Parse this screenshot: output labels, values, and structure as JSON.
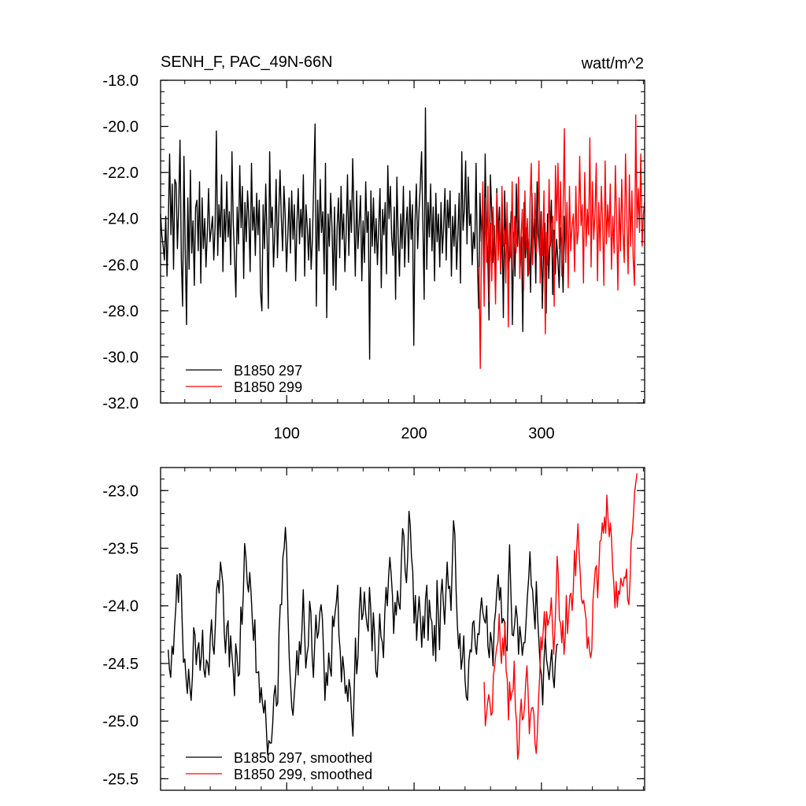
{
  "chart_data": [
    {
      "type": "line",
      "title": "SENH_F, PAC_49N-66N",
      "units": "watt/m^2",
      "xlim": [
        1,
        381
      ],
      "ylim": [
        -32,
        -18
      ],
      "y_ticks": [
        -32,
        -30,
        -28,
        -26,
        -24,
        -22,
        -20,
        -18
      ],
      "y_tick_labels": [
        "-32.0",
        "-30.0",
        "-28.0",
        "-26.0",
        "-24.0",
        "-22.0",
        "-20.0",
        "-18.0"
      ],
      "x_ticks": [
        100,
        200,
        300
      ],
      "x_tick_labels": [
        "100",
        "200",
        "300"
      ],
      "legend_position": "bottom-left",
      "series": [
        {
          "name": "B1850 297",
          "color": "#000000",
          "x_start": 1,
          "x_end": 319,
          "mean": -24.3,
          "sd": 1.7,
          "values": [
            -23.8,
            -24.7,
            -25.2,
            -25.8,
            -23.9,
            -26.5,
            -24.1,
            -21.2,
            -24.7,
            -22.5,
            -26.2,
            -22.3,
            -22.5,
            -25.3,
            -23.4,
            -20.6,
            -25.8,
            -27.8,
            -21.3,
            -25.3,
            -28.6,
            -23.1,
            -26.2,
            -21.9,
            -25.5,
            -24.1,
            -26.9,
            -23.5,
            -23.2,
            -25.4,
            -22.4,
            -26.8,
            -23.1,
            -25.3,
            -24.0,
            -26.1,
            -24.6,
            -22.7,
            -25.0,
            -24.5,
            -23.9,
            -25.8,
            -24.3,
            -20.2,
            -25.6,
            -23.4,
            -24.8,
            -22.1,
            -26.3,
            -23.6,
            -25.0,
            -22.4,
            -24.8,
            -23.7,
            -26.0,
            -21.1,
            -24.2,
            -25.7,
            -27.4,
            -23.5,
            -25.1,
            -21.7,
            -24.4,
            -22.6,
            -26.6,
            -23.3,
            -25.0,
            -22.8,
            -24.0,
            -26.3,
            -21.6,
            -24.5,
            -23.5,
            -25.6,
            -22.9,
            -24.7,
            -23.2,
            -27.2,
            -28.0,
            -23.4,
            -25.3,
            -22.5,
            -24.8,
            -27.9,
            -21.1,
            -24.4,
            -23.5,
            -26.1,
            -24.6,
            -22.3,
            -25.7,
            -23.8,
            -21.9,
            -24.0,
            -25.4,
            -22.6,
            -23.9,
            -26.3,
            -24.7,
            -23.1,
            -25.5,
            -22.8,
            -24.9,
            -23.4,
            -26.7,
            -24.2,
            -22.7,
            -25.1,
            -23.6,
            -24.8,
            -22.1,
            -26.5,
            -23.4,
            -24.4,
            -25.8,
            -24.0,
            -26.2,
            -24.8,
            -22.4,
            -19.9,
            -27.8,
            -23.2,
            -25.4,
            -22.3,
            -24.6,
            -23.7,
            -26.4,
            -21.6,
            -28.3,
            -23.8,
            -25.2,
            -22.9,
            -24.3,
            -26.9,
            -23.5,
            -27.1,
            -24.4,
            -23.1,
            -25.7,
            -22.6,
            -24.9,
            -23.8,
            -26.3,
            -24.5,
            -22.1,
            -25.6,
            -23.2,
            -24.6,
            -21.4,
            -23.9,
            -26.5,
            -22.8,
            -25.3,
            -24.2,
            -23.0,
            -26.7,
            -24.1,
            -25.9,
            -22.4,
            -24.6,
            -23.7,
            -30.1,
            -22.8,
            -25.2,
            -23.1,
            -25.5,
            -24.0,
            -26.0,
            -24.4,
            -22.7,
            -27.0,
            -23.6,
            -24.7,
            -23.3,
            -26.4,
            -21.7,
            -24.0,
            -22.6,
            -24.8,
            -25.6,
            -23.5,
            -27.5,
            -22.2,
            -24.8,
            -26.5,
            -23.8,
            -25.3,
            -22.6,
            -26.1,
            -24.3,
            -23.5,
            -25.9,
            -22.8,
            -24.9,
            -23.4,
            -29.5,
            -24.1,
            -22.5,
            -25.3,
            -23.7,
            -22.6,
            -21.1,
            -24.2,
            -27.5,
            -19.2,
            -26.2,
            -23.3,
            -24.8,
            -22.5,
            -25.4,
            -23.5,
            -26.7,
            -22.9,
            -25.0,
            -23.8,
            -26.1,
            -23.3,
            -25.5,
            -24.4,
            -22.7,
            -25.8,
            -23.2,
            -24.4,
            -22.8,
            -26.5,
            -23.9,
            -25.2,
            -23.4,
            -26.2,
            -24.7,
            -22.9,
            -26.8,
            -21.1,
            -24.5,
            -23.6,
            -21.5,
            -25.1,
            -22.2,
            -24.3,
            -23.8,
            -26.0,
            -24.6,
            -25.3,
            -21.6,
            -25.7,
            -27.9,
            -22.9,
            -25.0,
            -23.4,
            -26.8,
            -21.2,
            -24.6,
            -25.5,
            -28.4,
            -22.1,
            -23.6,
            -25.9,
            -24.3,
            -27.1,
            -22.7,
            -24.9,
            -23.5,
            -26.4,
            -24.0,
            -28.3,
            -22.8,
            -25.1,
            -23.9,
            -26.2,
            -25.6,
            -23.7,
            -28.6,
            -24.6,
            -26.5,
            -22.5,
            -25.2,
            -23.6,
            -26.1,
            -24.8,
            -28.9,
            -23.3,
            -25.7,
            -24.4,
            -26.5,
            -24.9,
            -27.2,
            -22.9,
            -25.3,
            -24.0,
            -26.8,
            -22.4,
            -24.6,
            -25.6,
            -23.7,
            -27.9,
            -25.4,
            -24.2,
            -28.1,
            -23.8,
            -26.6,
            -24.7,
            -23.2,
            -27.3,
            -24.5,
            -26.4,
            -24.9,
            -25.8,
            -27.0,
            -24.4,
            -25.2,
            -27.2,
            -23.9,
            -25.6
          ]
        },
        {
          "name": "B1850 299",
          "color": "#ff0000",
          "x_start": 251,
          "x_end": 381,
          "mean": -24.1,
          "sd": 1.9,
          "values": [
            -26.1,
            -30.5,
            -24.6,
            -22.4,
            -27.8,
            -23.1,
            -25.9,
            -22.6,
            -27.6,
            -24.2,
            -26.7,
            -23.5,
            -25.3,
            -27.7,
            -22.9,
            -25.8,
            -24.1,
            -26.3,
            -22.6,
            -25.2,
            -24.5,
            -26.8,
            -23.3,
            -28.7,
            -24.2,
            -25.7,
            -22.4,
            -26.2,
            -23.9,
            -25.5,
            -24.3,
            -22.2,
            -26.6,
            -24.8,
            -23.6,
            -27.1,
            -22.8,
            -25.3,
            -24.0,
            -26.4,
            -23.4,
            -21.6,
            -26.0,
            -24.6,
            -22.9,
            -25.5,
            -24.3,
            -21.5,
            -26.8,
            -23.7,
            -25.6,
            -22.8,
            -29.0,
            -24.6,
            -26.0,
            -22.3,
            -25.2,
            -24.2,
            -23.9,
            -27.8,
            -21.7,
            -24.1,
            -21.6,
            -25.3,
            -22.4,
            -26.5,
            -23.6,
            -20.1,
            -25.9,
            -23.3,
            -27.0,
            -22.6,
            -25.4,
            -24.3,
            -23.8,
            -26.3,
            -22.6,
            -25.1,
            -24.5,
            -21.3,
            -24.3,
            -23.4,
            -26.8,
            -22.0,
            -25.2,
            -23.6,
            -24.7,
            -20.5,
            -26.1,
            -22.4,
            -24.9,
            -23.8,
            -21.6,
            -26.7,
            -23.3,
            -25.4,
            -22.6,
            -24.2,
            -26.9,
            -21.5,
            -25.1,
            -23.4,
            -24.8,
            -22.5,
            -26.2,
            -23.9,
            -25.5,
            -21.7,
            -24.0,
            -27.1,
            -23.1,
            -25.4,
            -22.3,
            -24.6,
            -25.9,
            -21.2,
            -23.8,
            -26.4,
            -22.1,
            -25.2,
            -22.8,
            -25.7,
            -26.9,
            -19.5,
            -24.4,
            -22.7,
            -24.6,
            -21.2,
            -25.2,
            -23.8,
            -23.3
          ]
        }
      ]
    },
    {
      "type": "line",
      "xlim": [
        1,
        381
      ],
      "ylim": [
        -25.6,
        -22.8
      ],
      "y_ticks": [
        -25.5,
        -25.0,
        -24.5,
        -24.0,
        -23.5,
        -23.0
      ],
      "y_tick_labels": [
        "-25.5",
        "-25.0",
        "-24.5",
        "-24.0",
        "-23.5",
        "-23.0"
      ],
      "x_ticks": [
        100,
        200,
        300
      ],
      "legend_position": "bottom-left",
      "series": [
        {
          "name": "B1850 297, smoothed",
          "color": "#000000",
          "x_start": 7,
          "x_end": 313,
          "values": [
            -24.38,
            -24.55,
            -24.62,
            -24.35,
            -24.42,
            -24.18,
            -24.01,
            -23.73,
            -23.97,
            -23.72,
            -23.74,
            -24.15,
            -24.49,
            -24.46,
            -24.63,
            -24.76,
            -24.55,
            -24.7,
            -24.82,
            -24.61,
            -24.19,
            -24.25,
            -24.51,
            -24.38,
            -24.32,
            -24.56,
            -24.44,
            -24.21,
            -24.55,
            -24.62,
            -24.47,
            -24.5,
            -24.6,
            -24.28,
            -24.12,
            -24.35,
            -24.42,
            -24.17,
            -23.86,
            -23.78,
            -23.89,
            -23.62,
            -23.71,
            -23.82,
            -24.23,
            -24.41,
            -24.18,
            -24.13,
            -24.53,
            -24.26,
            -24.42,
            -24.56,
            -24.78,
            -24.33,
            -24.43,
            -24.61,
            -24.59,
            -24.01,
            -24.16,
            -23.88,
            -23.46,
            -23.57,
            -23.8,
            -23.88,
            -23.71,
            -23.88,
            -24.11,
            -24.3,
            -24.12,
            -24.58,
            -24.58,
            -24.57,
            -24.84,
            -24.71,
            -24.85,
            -24.93,
            -24.82,
            -25.05,
            -25.29,
            -25.17,
            -25.19,
            -25.19,
            -25.03,
            -24.78,
            -24.69,
            -24.87,
            -24.84,
            -24.24,
            -23.99,
            -23.99,
            -23.58,
            -23.5,
            -23.32,
            -23.52,
            -24.06,
            -24.45,
            -24.67,
            -24.88,
            -24.95,
            -24.77,
            -24.61,
            -24.39,
            -24.6,
            -24.31,
            -24.42,
            -24.21,
            -23.86,
            -24.23,
            -24.54,
            -24.42,
            -24.35,
            -23.96,
            -24.06,
            -24.44,
            -24.62,
            -24.33,
            -24.08,
            -24.28,
            -24.23,
            -24.06,
            -23.99,
            -24.1,
            -24.41,
            -24.82,
            -24.58,
            -24.69,
            -24.41,
            -24.54,
            -24.61,
            -24.09,
            -24.18,
            -24.06,
            -23.97,
            -23.82,
            -24.25,
            -24.39,
            -24.66,
            -24.44,
            -24.56,
            -24.76,
            -24.69,
            -24.83,
            -24.64,
            -24.72,
            -24.97,
            -25.13,
            -24.73,
            -24.28,
            -24.59,
            -24.43,
            -24.03,
            -23.84,
            -24.12,
            -24.07,
            -23.88,
            -24.06,
            -24.16,
            -24.22,
            -23.84,
            -24.02,
            -24.39,
            -24.06,
            -24.24,
            -24.57,
            -24.62,
            -24.39,
            -24.07,
            -24.27,
            -24.31,
            -24.45,
            -24.07,
            -23.84,
            -24.0,
            -23.75,
            -23.58,
            -23.72,
            -23.91,
            -24.24,
            -23.97,
            -24.08,
            -23.87,
            -23.98,
            -24.03,
            -23.61,
            -23.33,
            -23.39,
            -23.69,
            -23.8,
            -23.57,
            -23.18,
            -23.3,
            -23.58,
            -23.7,
            -24.15,
            -23.91,
            -24.3,
            -24.08,
            -23.92,
            -24.12,
            -24.36,
            -24.09,
            -24.28,
            -23.94,
            -23.82,
            -24.3,
            -23.95,
            -24.1,
            -24.14,
            -24.43,
            -24.17,
            -24.48,
            -23.78,
            -24.06,
            -24.38,
            -23.91,
            -23.77,
            -23.98,
            -24.16,
            -23.88,
            -23.62,
            -23.85,
            -23.83,
            -24.04,
            -23.64,
            -23.26,
            -23.38,
            -23.87,
            -24.17,
            -24.37,
            -24.24,
            -24.55,
            -24.45,
            -24.26,
            -24.64,
            -24.79,
            -24.82,
            -24.48,
            -24.38,
            -24.4,
            -24.15,
            -24.13,
            -24.34,
            -24.42,
            -24.24,
            -24.25,
            -24.05,
            -23.93,
            -24.06,
            -24.12,
            -24.15,
            -24.0,
            -24.35,
            -24.45,
            -24.23,
            -24.32,
            -24.52,
            -24.15,
            -24.05,
            -23.86,
            -23.73,
            -23.95,
            -23.84,
            -24.15,
            -24.11,
            -24.14,
            -24.36,
            -24.39,
            -23.85,
            -23.47,
            -23.89,
            -24.25,
            -24.26,
            -24.15,
            -24.0,
            -24.11,
            -24.42,
            -24.18,
            -24.28,
            -24.43,
            -24.32,
            -24.32,
            -24.12,
            -23.91,
            -23.76,
            -23.53,
            -23.82,
            -23.86,
            -24.04,
            -24.2,
            -23.79,
            -24.11,
            -24.31,
            -24.53,
            -24.6,
            -24.86,
            -24.48,
            -24.26,
            -24.47,
            -24.54,
            -24.64,
            -24.51,
            -24.38,
            -24.61,
            -24.71,
            -24.47,
            -24.34,
            -24.33
          ]
        },
        {
          "name": "B1850 299, smoothed",
          "color": "#ff0000",
          "x_start": 255,
          "x_end": 375,
          "values": [
            -24.66,
            -25.04,
            -24.95,
            -24.84,
            -24.77,
            -24.84,
            -24.95,
            -24.93,
            -24.61,
            -24.53,
            -24.43,
            -24.35,
            -24.31,
            -24.07,
            -24.36,
            -24.5,
            -24.28,
            -24.43,
            -24.14,
            -24.56,
            -24.64,
            -24.99,
            -24.66,
            -24.82,
            -24.75,
            -24.73,
            -24.48,
            -24.89,
            -25.01,
            -25.33,
            -25.25,
            -24.95,
            -24.81,
            -24.99,
            -24.97,
            -24.86,
            -24.65,
            -24.52,
            -24.76,
            -25.11,
            -24.95,
            -24.89,
            -24.88,
            -24.94,
            -25.2,
            -25.28,
            -25.09,
            -24.81,
            -24.61,
            -24.27,
            -24.38,
            -24.22,
            -24.05,
            -24.28,
            -24.05,
            -24.17,
            -24.12,
            -24.08,
            -23.93,
            -24.17,
            -24.42,
            -24.24,
            -23.96,
            -23.57,
            -23.72,
            -24.12,
            -24.15,
            -24.32,
            -24.13,
            -24.42,
            -24.28,
            -23.91,
            -24.24,
            -24.07,
            -23.91,
            -23.89,
            -24.04,
            -23.86,
            -23.52,
            -23.74,
            -23.49,
            -23.29,
            -23.54,
            -23.72,
            -23.94,
            -23.98,
            -23.95,
            -24.04,
            -24.11,
            -24.37,
            -24.27,
            -24.39,
            -24.45,
            -24.38,
            -23.95,
            -23.81,
            -23.68,
            -23.65,
            -23.93,
            -23.71,
            -23.44,
            -23.43,
            -23.28,
            -23.37,
            -23.23,
            -23.37,
            -23.04,
            -23.24,
            -23.4,
            -23.28,
            -23.41,
            -23.67,
            -23.81,
            -24.02,
            -23.79,
            -24.01,
            -23.87,
            -23.9,
            -23.76,
            -23.81,
            -23.83,
            -23.75,
            -23.76,
            -23.68,
            -23.95,
            -23.99,
            -23.78,
            -23.44,
            -23.36,
            -23.2,
            -23.01,
            -22.93,
            -22.85
          ]
        }
      ]
    }
  ]
}
